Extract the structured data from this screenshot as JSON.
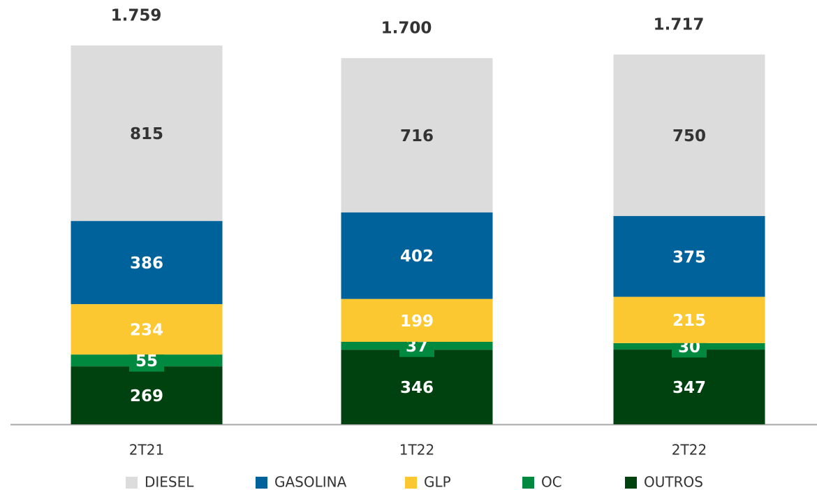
{
  "chart_data": {
    "type": "stacked_bar",
    "categories": [
      "2T21",
      "1T22",
      "2T22"
    ],
    "series": [
      {
        "name": "OUTROS",
        "color": "#00420f",
        "values": [
          269,
          346,
          347
        ]
      },
      {
        "name": "OC",
        "color": "#00893f",
        "values": [
          55,
          37,
          30
        ]
      },
      {
        "name": "GLP",
        "color": "#fbc832",
        "values": [
          234,
          199,
          215
        ]
      },
      {
        "name": "GASOLINA",
        "color": "#00629b",
        "values": [
          386,
          402,
          375
        ]
      },
      {
        "name": "DIESEL",
        "color": "#dcdcdc",
        "values": [
          815,
          716,
          750
        ]
      }
    ],
    "legend_order": [
      4,
      3,
      2,
      1,
      0
    ],
    "totals": {
      "values": [
        1759,
        1700,
        1717
      ],
      "value_labels": [
        "1.759",
        "1.700",
        "1.717"
      ]
    }
  }
}
